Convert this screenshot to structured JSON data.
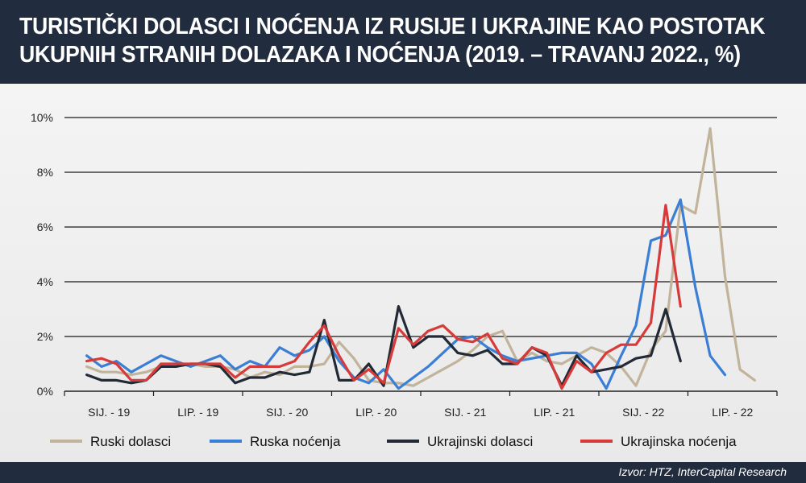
{
  "header": {
    "title_line1": "TURISTIČKI DOLASCI I NOĆENJA IZ RUSIJE I UKRAJINE KAO POSTOTAK",
    "title_line2": "UKUPNIH STRANIH DOLAZAKA I NOĆENJA (2019. – TRAVANJ 2022., %)"
  },
  "footer": {
    "source": "Izvor: HTZ, InterCapital Research"
  },
  "chart_data": {
    "type": "line",
    "title": "TURISTIČKI DOLASCI I NOĆENJA IZ RUSIJE I UKRAJINE KAO POSTOTAK UKUPNIH STRANIH DOLAZAKA I NOĆENJA (2019. – TRAVANJ 2022., %)",
    "x_ticks": [
      "SIJ. - 19",
      "LIP. - 19",
      "SIJ. - 20",
      "LIP. - 20",
      "SIJ. - 21",
      "LIP. - 21",
      "SIJ. - 22",
      "LIP. - 22"
    ],
    "y_ticks": [
      "0%",
      "2%",
      "4%",
      "6%",
      "8%",
      "10%"
    ],
    "ylim": [
      0,
      10
    ],
    "y_unit": "%",
    "grid": true,
    "legend_position": "bottom",
    "series": [
      {
        "name": "Ruski dolasci",
        "color": "#c2b39b",
        "values": [
          0.9,
          0.7,
          0.7,
          0.6,
          0.7,
          0.9,
          0.9,
          1.0,
          0.9,
          0.9,
          0.8,
          0.5,
          0.7,
          0.6,
          0.9,
          0.9,
          1.0,
          1.8,
          1.2,
          0.4,
          0.3,
          0.3,
          0.2,
          0.5,
          0.8,
          1.1,
          1.5,
          2.0,
          2.2,
          1.1,
          1.4,
          1.1,
          1.0,
          1.3,
          1.6,
          1.4,
          0.9,
          0.2,
          1.5,
          2.2,
          6.8,
          6.5,
          9.6,
          4.2,
          0.8,
          0.4
        ]
      },
      {
        "name": "Ruska noćenja",
        "color": "#3a7fd5",
        "values": [
          1.3,
          0.9,
          1.1,
          0.7,
          1.0,
          1.3,
          1.1,
          0.9,
          1.1,
          1.3,
          0.8,
          1.1,
          0.9,
          1.6,
          1.3,
          1.5,
          2.0,
          1.1,
          0.5,
          0.3,
          0.8,
          0.1,
          0.5,
          0.9,
          1.4,
          1.9,
          2.0,
          1.6,
          1.3,
          1.1,
          1.2,
          1.3,
          1.4,
          1.4,
          1.0,
          0.1,
          1.3,
          2.4,
          5.5,
          5.7,
          7.0,
          3.8,
          1.3,
          0.6
        ]
      },
      {
        "name": "Ukrajinski dolasci",
        "color": "#222a35",
        "values": [
          0.6,
          0.4,
          0.4,
          0.3,
          0.4,
          0.9,
          0.9,
          1.0,
          1.0,
          0.9,
          0.3,
          0.5,
          0.5,
          0.7,
          0.6,
          0.7,
          2.6,
          0.4,
          0.4,
          1.0,
          0.2,
          3.1,
          1.6,
          2.0,
          2.0,
          1.4,
          1.3,
          1.5,
          1.0,
          1.0,
          1.6,
          1.3,
          0.2,
          1.3,
          0.7,
          0.8,
          0.9,
          1.2,
          1.3,
          3.0,
          1.1
        ]
      },
      {
        "name": "Ukrajinska noćenja",
        "color": "#d83a3a",
        "values": [
          1.1,
          1.2,
          1.0,
          0.4,
          0.4,
          1.0,
          1.0,
          1.0,
          1.0,
          1.0,
          0.5,
          0.9,
          0.9,
          0.9,
          1.1,
          1.8,
          2.4,
          1.3,
          0.4,
          0.8,
          0.3,
          2.3,
          1.7,
          2.2,
          2.4,
          1.9,
          1.8,
          2.1,
          1.2,
          1.0,
          1.6,
          1.4,
          0.1,
          1.1,
          0.7,
          1.4,
          1.7,
          1.7,
          2.5,
          6.8,
          3.1
        ]
      }
    ]
  }
}
